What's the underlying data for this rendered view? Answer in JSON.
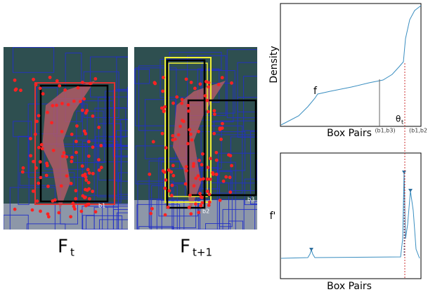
{
  "panels": [
    {
      "label": "F",
      "subscript": "t",
      "box_labels": [
        "b1"
      ]
    },
    {
      "label": "F",
      "subscript": "t+1",
      "box_labels": [
        "b2",
        "b3"
      ]
    }
  ],
  "density_plot": {
    "y_label": "Density",
    "x_label": "Box Pairs",
    "curve_label": "f",
    "threshold_label": "θ",
    "threshold_subscript": "t",
    "pair_labels": [
      "(b1,b3)",
      "(b1,b2"
    ]
  },
  "derivative_plot": {
    "y_label": "f'",
    "x_label": "Box Pairs"
  }
}
